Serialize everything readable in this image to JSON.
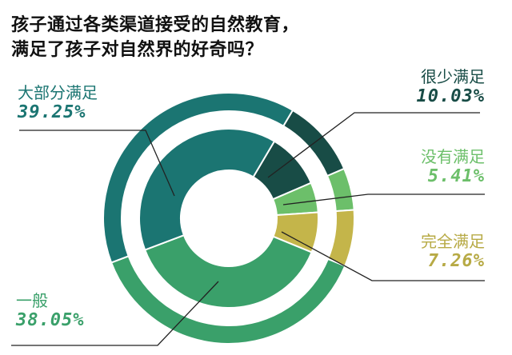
{
  "title": {
    "line1": "孩子通过各类渠道接受的自然教育，",
    "line2": "满足了孩子对自然界的好奇吗？"
  },
  "labels": {
    "mostly": {
      "name": "大部分满足",
      "pct": "39.25%"
    },
    "rarely": {
      "name": "很少满足",
      "pct": "10.03%"
    },
    "none": {
      "name": "没有满足",
      "pct": "5.41%"
    },
    "fully": {
      "name": "完全满足",
      "pct": "7.26%"
    },
    "average": {
      "name": "一般",
      "pct": "38.05%"
    }
  },
  "chart_data": {
    "type": "pie",
    "subtype": "double-ring donut",
    "title": "孩子通过各类渠道接受的自然教育，满足了孩子对自然界的好奇吗？",
    "categories": [
      "大部分满足",
      "很少满足",
      "没有满足",
      "完全满足",
      "一般"
    ],
    "values": [
      39.25,
      10.03,
      5.41,
      7.26,
      38.05
    ],
    "unit": "%",
    "colors": [
      "#1b7572",
      "#184c46",
      "#6cbf6a",
      "#c4b54a",
      "#3aa06a"
    ],
    "start_angle_deg": 30.6,
    "order": [
      "很少满足",
      "没有满足",
      "完全满足",
      "一般",
      "大部分满足"
    ],
    "legend": "callout labels with leader lines"
  }
}
